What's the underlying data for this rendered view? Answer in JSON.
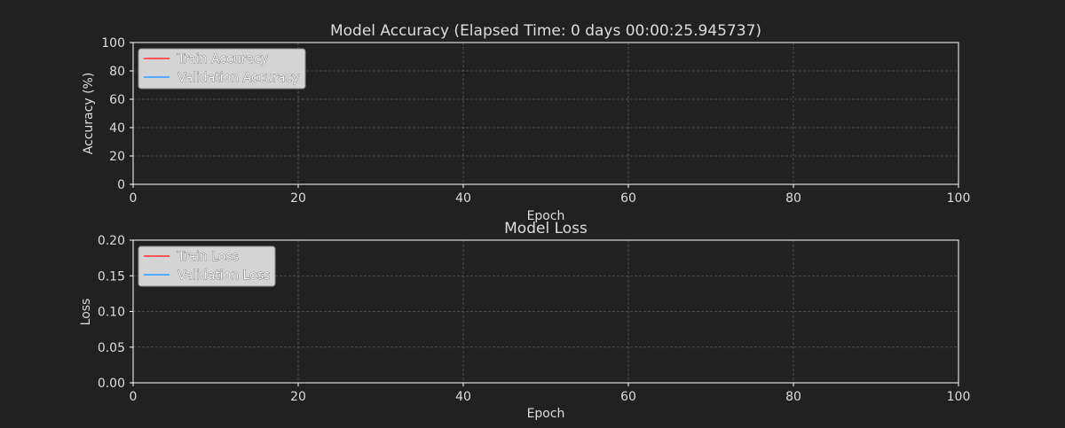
{
  "colors": {
    "background": "#212121",
    "axis": "#ffffff",
    "text": "#dddddd",
    "grid": "#5a5a5a",
    "legend_bg": "#d4d4d4",
    "legend_border": "#8a8a8a",
    "train": "#ff5555",
    "validation": "#55aaff"
  },
  "chart_data": [
    {
      "type": "line",
      "title": "Model Accuracy (Elapsed Time: 0 days 00:00:25.945737)",
      "xlabel": "Epoch",
      "ylabel": "Accuracy (%)",
      "xlim": [
        0,
        100
      ],
      "ylim": [
        0,
        100
      ],
      "xticks": [
        0,
        20,
        40,
        60,
        80,
        100
      ],
      "yticks": [
        0,
        20,
        40,
        60,
        80,
        100
      ],
      "xtick_labels": [
        "0",
        "20",
        "40",
        "60",
        "80",
        "100"
      ],
      "ytick_labels": [
        "0",
        "20",
        "40",
        "60",
        "80",
        "100"
      ],
      "grid": true,
      "legend_position": "top-left",
      "series": [
        {
          "name": "Train Accuracy",
          "color": "#ff5555",
          "x": [],
          "y": []
        },
        {
          "name": "Validation Accuracy",
          "color": "#55aaff",
          "x": [],
          "y": []
        }
      ]
    },
    {
      "type": "line",
      "title": "Model Loss",
      "xlabel": "Epoch",
      "ylabel": "Loss",
      "xlim": [
        0,
        100
      ],
      "ylim": [
        0,
        0.2
      ],
      "xticks": [
        0,
        20,
        40,
        60,
        80,
        100
      ],
      "yticks": [
        0,
        0.05,
        0.1,
        0.15,
        0.2
      ],
      "xtick_labels": [
        "0",
        "20",
        "40",
        "60",
        "80",
        "100"
      ],
      "ytick_labels": [
        "0.00",
        "0.05",
        "0.10",
        "0.15",
        "0.20"
      ],
      "grid": true,
      "legend_position": "top-left",
      "series": [
        {
          "name": "Train Loss",
          "color": "#ff5555",
          "x": [],
          "y": []
        },
        {
          "name": "Validation Loss",
          "color": "#55aaff",
          "x": [],
          "y": []
        }
      ]
    }
  ]
}
